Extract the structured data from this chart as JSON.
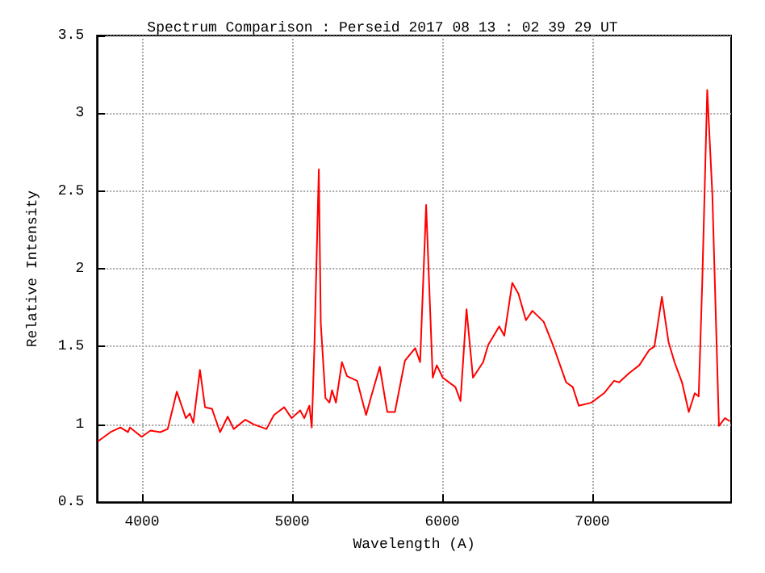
{
  "chart_data": {
    "type": "line",
    "title": "Spectrum Comparison : Perseid 2017 08 13 : 02 39 29 UT",
    "xlabel": "Wavelength (A)",
    "ylabel": "Relative Intensity",
    "x": [
      3705,
      3790,
      3856,
      3906,
      3920,
      3997,
      4057,
      4121,
      4171,
      4232,
      4292,
      4319,
      4342,
      4386,
      4420,
      4466,
      4520,
      4571,
      4611,
      4688,
      4745,
      4829,
      4879,
      4947,
      4997,
      5054,
      5081,
      5115,
      5131,
      5148,
      5178,
      5191,
      5222,
      5249,
      5266,
      5292,
      5332,
      5366,
      5433,
      5493,
      5527,
      5584,
      5634,
      5685,
      5752,
      5820,
      5853,
      5893,
      5937,
      5964,
      6004,
      6088,
      6122,
      6162,
      6205,
      6273,
      6306,
      6380,
      6414,
      6467,
      6508,
      6558,
      6601,
      6676,
      6742,
      6826,
      6870,
      6910,
      6994,
      7078,
      7145,
      7179,
      7246,
      7313,
      7381,
      7414,
      7464,
      7508,
      7548,
      7598,
      7643,
      7683,
      7709,
      7733,
      7766,
      7800,
      7844,
      7884,
      7917
    ],
    "series": [
      {
        "color": "#ff0000",
        "values": [
          0.89,
          0.95,
          0.98,
          0.95,
          0.98,
          0.92,
          0.96,
          0.95,
          0.97,
          1.21,
          1.04,
          1.07,
          1.01,
          1.35,
          1.11,
          1.1,
          0.95,
          1.05,
          0.97,
          1.03,
          1.0,
          0.97,
          1.06,
          1.11,
          1.04,
          1.09,
          1.04,
          1.12,
          0.98,
          1.48,
          2.64,
          1.65,
          1.17,
          1.14,
          1.22,
          1.14,
          1.4,
          1.31,
          1.28,
          1.06,
          1.18,
          1.37,
          1.08,
          1.08,
          1.41,
          1.49,
          1.4,
          2.41,
          1.3,
          1.38,
          1.3,
          1.24,
          1.15,
          1.74,
          1.3,
          1.4,
          1.51,
          1.63,
          1.57,
          1.91,
          1.84,
          1.67,
          1.73,
          1.66,
          1.5,
          1.27,
          1.24,
          1.12,
          1.14,
          1.2,
          1.28,
          1.27,
          1.33,
          1.38,
          1.48,
          1.5,
          1.82,
          1.53,
          1.4,
          1.27,
          1.08,
          1.2,
          1.18,
          1.92,
          3.15,
          2.48,
          0.99,
          1.04,
          1.02
        ]
      }
    ],
    "xlim": [
      3700,
      7925
    ],
    "xticks": [
      4000,
      5000,
      6000,
      7000
    ],
    "ylim": [
      0.5,
      3.5
    ],
    "yticks": [
      0.5,
      1,
      1.5,
      2,
      2.5,
      3,
      3.5
    ],
    "grid": true,
    "marker": "none",
    "line_style": "solid"
  }
}
